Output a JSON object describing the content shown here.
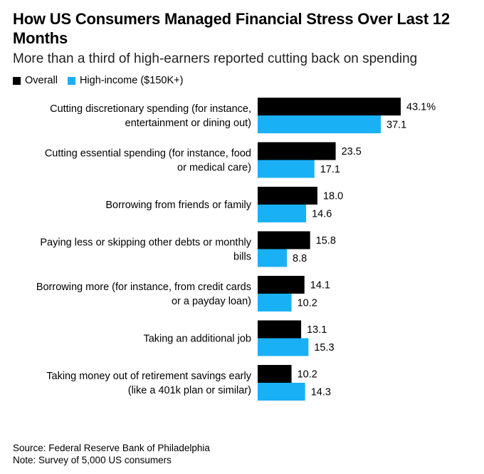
{
  "chart_data": {
    "type": "bar",
    "orientation": "horizontal",
    "title": "How US Consumers Managed Financial Stress Over Last 12 Months",
    "subtitle": "More than a third of high-earners reported cutting back on spending",
    "categories": [
      [
        "Cutting discretionary spending (for instance,",
        "entertainment or dining out)"
      ],
      [
        "Cutting essential spending (for instance, food",
        "or medical care)"
      ],
      [
        "Borrowing from friends or family"
      ],
      [
        "Paying less or skipping other debts or monthly",
        "bills"
      ],
      [
        "Borrowing more (for instance, from credit cards",
        "or a payday loan)"
      ],
      [
        "Taking an additional job"
      ],
      [
        "Taking money out of retirement savings early",
        "(like a 401k plan or similar)"
      ]
    ],
    "series": [
      {
        "name": "Overall",
        "color": "#000000",
        "values": [
          43.1,
          23.5,
          18.0,
          15.8,
          14.1,
          13.1,
          10.2
        ],
        "value_labels": [
          "43.1%",
          "23.5",
          "18.0",
          "15.8",
          "14.1",
          "13.1",
          "10.2"
        ]
      },
      {
        "name": "High-income ($150K+)",
        "color": "#1ab0f5",
        "values": [
          37.1,
          17.1,
          14.6,
          8.8,
          10.2,
          15.3,
          14.3
        ],
        "value_labels": [
          "37.1",
          "17.1",
          "14.6",
          "8.8",
          "10.2",
          "15.3",
          "14.3"
        ]
      }
    ],
    "xlim": [
      0,
      43.1
    ],
    "grid": false,
    "legend": "top-left"
  },
  "footer": {
    "source": "Source: Federal Reserve Bank of Philadelphia",
    "note": "Note: Survey of 5,000 US consumers"
  }
}
